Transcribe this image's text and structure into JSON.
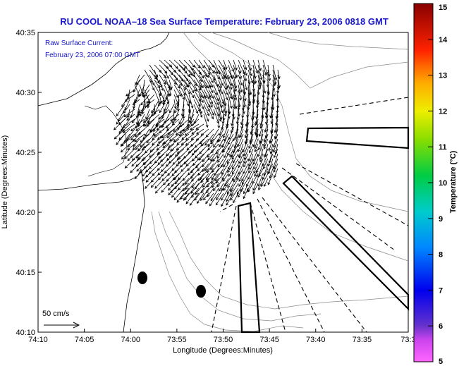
{
  "chart_data": {
    "type": "map",
    "title": "RU COOL  NOAA–18  Sea Surface Temperature:  February 23, 2006 0818 GMT",
    "inset_lines": [
      "Raw Surface Current:",
      "February 23, 2006 07:00 GMT"
    ],
    "xlabel": "Longitude (Degrees:Minutes)",
    "ylabel": "Latitude (Degrees:Minutes)",
    "x_ticks": [
      "74:10",
      "74:05",
      "74:00",
      "73:55",
      "73:50",
      "73:45",
      "73:40",
      "73:35",
      "73:3"
    ],
    "y_ticks": [
      "40:10",
      "40:15",
      "40:20",
      "40:25",
      "40:30",
      "40:35"
    ],
    "xlim_min": [
      -74.1667,
      -73.5
    ],
    "ylim_min": [
      40.1667,
      40.5833
    ],
    "scale_label": "50 cm/s",
    "colorbar": {
      "label": "Temperature (°C)",
      "ticks": [
        "5",
        "6",
        "7",
        "8",
        "9",
        "10",
        "11",
        "12",
        "13",
        "14",
        "15"
      ],
      "range": [
        5,
        15
      ]
    },
    "current_field": {
      "center_lon": -73.8667,
      "center_lat": 40.45,
      "description_vectors": "radial surface current vectors over the New York Bight apex"
    }
  },
  "colors": {
    "title": "#1a1acc",
    "axis": "#000000",
    "contour": "#808080"
  }
}
